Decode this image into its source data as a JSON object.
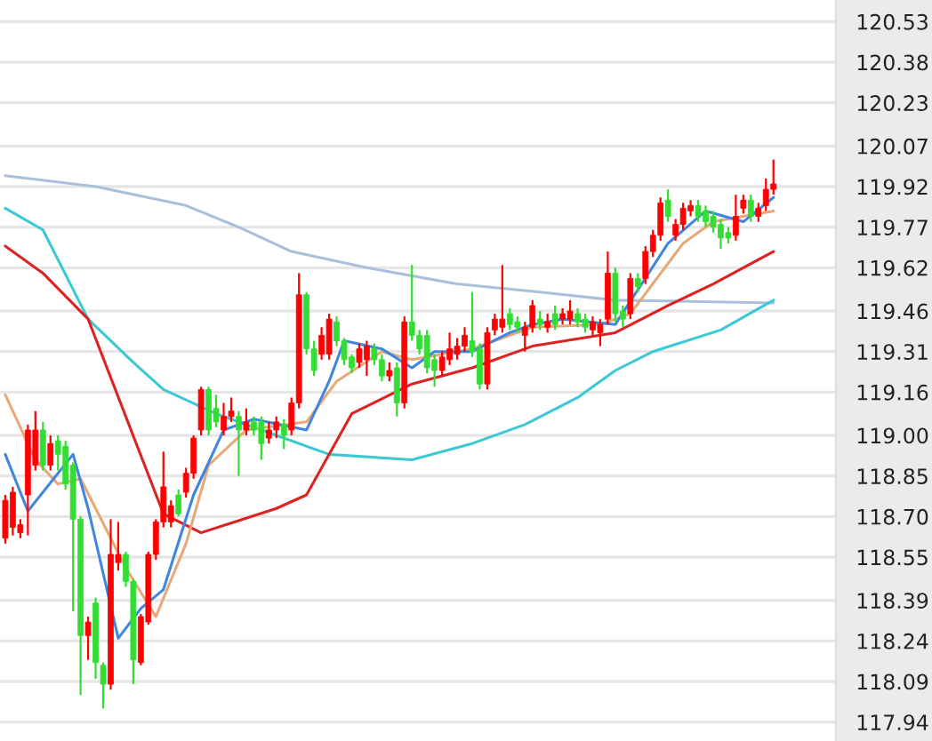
{
  "chart_data": {
    "type": "candlestick",
    "categories": [
      null,
      null,
      null,
      null,
      null,
      null,
      null,
      null,
      null,
      null,
      null,
      null,
      null,
      null,
      null,
      null,
      null,
      null,
      null,
      null,
      null,
      null,
      null,
      null,
      null,
      null,
      null,
      null,
      null,
      null,
      null,
      null,
      null,
      null,
      null,
      null,
      null,
      null,
      null,
      null,
      null,
      null,
      null,
      null,
      null,
      null,
      null,
      null,
      null,
      null,
      null,
      null,
      null,
      null,
      null,
      null,
      null,
      null,
      null,
      null,
      null,
      null,
      null,
      null,
      null,
      null,
      null,
      null,
      null,
      null,
      null,
      null,
      null,
      null,
      null,
      null,
      null,
      null,
      null,
      null,
      null,
      null,
      null,
      null,
      null,
      null,
      null,
      null,
      null,
      null,
      null,
      null,
      null,
      null,
      null,
      null,
      null,
      null,
      null,
      null,
      null,
      null,
      null
    ],
    "ohlc": [
      [
        118.62,
        118.78,
        118.6,
        118.76
      ],
      [
        118.66,
        118.81,
        118.63,
        118.79
      ],
      [
        118.64,
        118.69,
        118.62,
        118.67
      ],
      [
        118.78,
        119.04,
        118.63,
        119.02
      ],
      [
        118.89,
        119.09,
        118.87,
        119.02
      ],
      [
        119.02,
        119.05,
        118.87,
        118.89
      ],
      [
        118.89,
        119.0,
        118.87,
        118.97
      ],
      [
        118.98,
        119.0,
        118.87,
        118.93
      ],
      [
        118.96,
        118.98,
        118.8,
        118.82
      ],
      [
        118.89,
        118.9,
        118.35,
        118.69
      ],
      [
        118.69,
        118.7,
        118.04,
        118.26
      ],
      [
        118.26,
        118.33,
        118.17,
        118.31
      ],
      [
        118.38,
        118.4,
        118.1,
        118.16
      ],
      [
        118.15,
        118.16,
        117.99,
        118.08
      ],
      [
        118.08,
        118.69,
        118.06,
        118.56
      ],
      [
        118.53,
        118.68,
        118.5,
        118.56
      ],
      [
        118.56,
        118.57,
        118.44,
        118.46
      ],
      [
        118.46,
        118.47,
        118.08,
        118.17
      ],
      [
        118.16,
        118.34,
        118.15,
        118.33
      ],
      [
        118.31,
        118.57,
        118.3,
        118.56
      ],
      [
        118.56,
        118.69,
        118.54,
        118.68
      ],
      [
        118.68,
        118.94,
        118.66,
        118.81
      ],
      [
        118.68,
        118.76,
        118.66,
        118.74
      ],
      [
        118.78,
        118.8,
        118.7,
        118.71
      ],
      [
        118.79,
        118.88,
        118.77,
        118.86
      ],
      [
        118.86,
        119.0,
        118.84,
        118.99
      ],
      [
        119.02,
        119.18,
        119.0,
        119.17
      ],
      [
        119.17,
        119.18,
        119.0,
        119.02
      ],
      [
        119.1,
        119.15,
        119.03,
        119.05
      ],
      [
        119.02,
        119.12,
        119.0,
        119.07
      ],
      [
        119.07,
        119.14,
        119.05,
        119.09
      ],
      [
        119.07,
        119.09,
        118.85,
        119.02
      ],
      [
        119.02,
        119.1,
        119.0,
        119.05
      ],
      [
        119.05,
        119.07,
        119.0,
        119.02
      ],
      [
        119.05,
        119.07,
        118.91,
        118.97
      ],
      [
        118.99,
        119.05,
        118.97,
        119.02
      ],
      [
        119.02,
        119.07,
        118.99,
        119.05
      ],
      [
        119.04,
        119.06,
        118.95,
        119.0
      ],
      [
        119.02,
        119.14,
        119.0,
        119.12
      ],
      [
        119.12,
        119.6,
        119.1,
        119.52
      ],
      [
        119.52,
        119.53,
        119.3,
        119.32
      ],
      [
        119.32,
        119.35,
        119.22,
        119.24
      ],
      [
        119.3,
        119.4,
        119.28,
        119.37
      ],
      [
        119.3,
        119.45,
        119.28,
        119.43
      ],
      [
        119.42,
        119.44,
        119.33,
        119.35
      ],
      [
        119.35,
        119.36,
        119.26,
        119.28
      ],
      [
        119.29,
        119.3,
        119.23,
        119.25
      ],
      [
        119.27,
        119.34,
        119.25,
        119.32
      ],
      [
        119.28,
        119.35,
        119.22,
        119.33
      ],
      [
        119.32,
        119.34,
        119.26,
        119.28
      ],
      [
        119.28,
        119.3,
        119.2,
        119.22
      ],
      [
        119.22,
        119.27,
        119.2,
        119.24
      ],
      [
        119.25,
        119.27,
        119.07,
        119.12
      ],
      [
        119.12,
        119.44,
        119.1,
        119.42
      ],
      [
        119.42,
        119.63,
        119.35,
        119.37
      ],
      [
        119.37,
        119.39,
        119.3,
        119.32
      ],
      [
        119.37,
        119.39,
        119.23,
        119.25
      ],
      [
        119.28,
        119.3,
        119.18,
        119.24
      ],
      [
        119.24,
        119.31,
        119.22,
        119.29
      ],
      [
        119.28,
        119.38,
        119.26,
        119.32
      ],
      [
        119.3,
        119.36,
        119.28,
        119.33
      ],
      [
        119.33,
        119.4,
        119.31,
        119.37
      ],
      [
        119.35,
        119.53,
        119.29,
        119.31
      ],
      [
        119.32,
        119.34,
        119.17,
        119.19
      ],
      [
        119.19,
        119.4,
        119.17,
        119.38
      ],
      [
        119.39,
        119.45,
        119.37,
        119.43
      ],
      [
        119.4,
        119.63,
        119.38,
        119.43
      ],
      [
        119.45,
        119.47,
        119.39,
        119.41
      ],
      [
        119.42,
        119.44,
        119.38,
        119.4
      ],
      [
        119.37,
        119.42,
        119.31,
        119.4
      ],
      [
        119.4,
        119.5,
        119.38,
        119.48
      ],
      [
        119.43,
        119.46,
        119.39,
        119.41
      ],
      [
        119.4,
        119.45,
        119.38,
        119.42
      ],
      [
        119.45,
        119.48,
        119.39,
        119.41
      ],
      [
        119.43,
        119.47,
        119.41,
        119.45
      ],
      [
        119.43,
        119.5,
        119.41,
        119.46
      ],
      [
        119.45,
        119.47,
        119.4,
        119.42
      ],
      [
        119.43,
        119.45,
        119.38,
        119.4
      ],
      [
        119.39,
        119.44,
        119.37,
        119.42
      ],
      [
        119.38,
        119.43,
        119.33,
        119.41
      ],
      [
        119.43,
        119.68,
        119.41,
        119.6
      ],
      [
        119.6,
        119.62,
        119.42,
        119.45
      ],
      [
        119.46,
        119.48,
        119.4,
        119.43
      ],
      [
        119.45,
        119.6,
        119.43,
        119.58
      ],
      [
        119.58,
        119.6,
        119.53,
        119.55
      ],
      [
        119.58,
        119.7,
        119.56,
        119.68
      ],
      [
        119.68,
        119.76,
        119.66,
        119.74
      ],
      [
        119.74,
        119.88,
        119.72,
        119.86
      ],
      [
        119.87,
        119.91,
        119.79,
        119.81
      ],
      [
        119.74,
        119.8,
        119.72,
        119.78
      ],
      [
        119.78,
        119.86,
        119.76,
        119.84
      ],
      [
        119.83,
        119.87,
        119.81,
        119.85
      ],
      [
        119.85,
        119.87,
        119.79,
        119.81
      ],
      [
        119.83,
        119.85,
        119.77,
        119.79
      ],
      [
        119.81,
        119.83,
        119.75,
        119.77
      ],
      [
        119.78,
        119.8,
        119.69,
        119.73
      ],
      [
        119.75,
        119.77,
        119.71,
        119.73
      ],
      [
        119.74,
        119.89,
        119.72,
        119.81
      ],
      [
        119.84,
        119.89,
        119.82,
        119.87
      ],
      [
        119.87,
        119.89,
        119.79,
        119.81
      ],
      [
        119.81,
        119.86,
        119.79,
        119.84
      ],
      [
        119.85,
        119.95,
        119.83,
        119.91
      ],
      [
        119.91,
        120.02,
        119.89,
        119.93
      ]
    ],
    "colors": [
      "#ff0000",
      "#ff0000",
      "#ff0000",
      "#ff0000",
      "#ff0000",
      "#33dd33",
      "#ff0000",
      "#33dd33",
      "#33dd33",
      "#33dd33",
      "#33dd33",
      "#ff0000",
      "#33dd33",
      "#33dd33",
      "#ff0000",
      "#ff0000",
      "#33dd33",
      "#33dd33",
      "#ff0000",
      "#ff0000",
      "#ff0000",
      "#ff0000",
      "#ff0000",
      "#33dd33",
      "#ff0000",
      "#ff0000",
      "#ff0000",
      "#33dd33",
      "#33dd33",
      "#ff0000",
      "#ff0000",
      "#33dd33",
      "#ff0000",
      "#33dd33",
      "#33dd33",
      "#ff0000",
      "#ff0000",
      "#33dd33",
      "#ff0000",
      "#ff0000",
      "#33dd33",
      "#33dd33",
      "#ff0000",
      "#ff0000",
      "#33dd33",
      "#33dd33",
      "#33dd33",
      "#ff0000",
      "#ff0000",
      "#33dd33",
      "#33dd33",
      "#ff0000",
      "#33dd33",
      "#ff0000",
      "#33dd33",
      "#33dd33",
      "#33dd33",
      "#33dd33",
      "#ff0000",
      "#ff0000",
      "#ff0000",
      "#ff0000",
      "#33dd33",
      "#33dd33",
      "#ff0000",
      "#ff0000",
      "#ff0000",
      "#33dd33",
      "#33dd33",
      "#ff0000",
      "#ff0000",
      "#33dd33",
      "#ff0000",
      "#33dd33",
      "#ff0000",
      "#ff0000",
      "#33dd33",
      "#33dd33",
      "#ff0000",
      "#ff0000",
      "#ff0000",
      "#33dd33",
      "#33dd33",
      "#ff0000",
      "#33dd33",
      "#ff0000",
      "#ff0000",
      "#ff0000",
      "#33dd33",
      "#ff0000",
      "#ff0000",
      "#ff0000",
      "#33dd33",
      "#33dd33",
      "#33dd33",
      "#33dd33",
      "#33dd33",
      "#ff0000",
      "#ff0000",
      "#33dd33",
      "#ff0000",
      "#ff0000",
      "#ff0000"
    ],
    "series": [
      {
        "type": "line",
        "color": "#a9bfdc",
        "values": [
          119.96,
          null,
          null,
          null,
          null,
          null,
          null,
          null,
          null,
          null,
          null,
          null,
          119.92,
          null,
          null,
          null,
          null,
          null,
          null,
          null,
          null,
          null,
          null,
          null,
          119.85,
          null,
          null,
          null,
          null,
          null,
          null,
          119.77,
          null,
          null,
          null,
          null,
          null,
          null,
          119.68,
          null,
          null,
          null,
          null,
          null,
          null,
          null,
          null,
          null,
          119.62,
          null,
          null,
          null,
          null,
          null,
          null,
          null,
          null,
          null,
          null,
          null,
          119.56,
          null,
          null,
          null,
          null,
          null,
          null,
          null,
          null,
          null,
          null,
          119.53,
          null,
          null,
          null,
          null,
          null,
          null,
          null,
          null,
          null,
          119.5,
          null,
          null,
          null,
          null,
          null,
          null,
          null,
          null,
          null,
          null,
          null,
          null,
          null,
          null,
          null,
          null,
          null,
          null,
          null,
          null,
          119.49
        ]
      },
      {
        "type": "line",
        "color": "#3cc8d4",
        "values": [
          119.84,
          null,
          null,
          null,
          null,
          119.76,
          null,
          null,
          null,
          null,
          null,
          119.43,
          null,
          null,
          null,
          null,
          null,
          119.27,
          null,
          null,
          null,
          119.17,
          null,
          null,
          null,
          null,
          null,
          null,
          119.08,
          null,
          null,
          null,
          null,
          null,
          null,
          null,
          119.0,
          null,
          null,
          null,
          null,
          null,
          null,
          118.93,
          null,
          null,
          null,
          null,
          null,
          null,
          null,
          null,
          null,
          null,
          118.91,
          null,
          null,
          null,
          null,
          null,
          null,
          null,
          118.97,
          null,
          null,
          null,
          null,
          null,
          null,
          119.04,
          null,
          null,
          null,
          null,
          null,
          null,
          119.14,
          null,
          null,
          null,
          null,
          119.24,
          null,
          null,
          null,
          null,
          119.31,
          null,
          null,
          null,
          null,
          null,
          null,
          null,
          null,
          119.39,
          null,
          null,
          null,
          null,
          null,
          null,
          119.5
        ]
      },
      {
        "type": "line",
        "color": "#dd2222",
        "values": [
          119.7,
          null,
          null,
          null,
          null,
          119.6,
          null,
          null,
          null,
          null,
          null,
          119.43,
          null,
          null,
          null,
          null,
          null,
          null,
          null,
          null,
          null,
          118.71,
          null,
          null,
          null,
          null,
          118.64,
          null,
          null,
          null,
          null,
          null,
          null,
          null,
          null,
          null,
          118.73,
          null,
          null,
          null,
          118.78,
          null,
          null,
          null,
          null,
          null,
          119.08,
          null,
          null,
          null,
          null,
          null,
          null,
          null,
          119.19,
          null,
          null,
          null,
          null,
          null,
          null,
          null,
          119.25,
          null,
          null,
          null,
          null,
          null,
          null,
          null,
          119.33,
          null,
          null,
          null,
          null,
          null,
          null,
          null,
          null,
          null,
          null,
          119.38,
          null,
          null,
          null,
          null,
          null,
          null,
          119.48,
          null,
          null,
          null,
          null,
          null,
          119.56,
          null,
          null,
          null,
          null,
          null,
          null,
          null,
          119.68
        ]
      },
      {
        "type": "line",
        "color": "#e8a878",
        "values": [
          119.15,
          null,
          null,
          null,
          118.91,
          null,
          null,
          118.82,
          null,
          null,
          118.84,
          null,
          null,
          null,
          null,
          null,
          118.51,
          null,
          null,
          null,
          118.33,
          null,
          null,
          null,
          118.6,
          null,
          null,
          118.89,
          null,
          null,
          null,
          null,
          119.02,
          null,
          null,
          null,
          null,
          null,
          null,
          null,
          119.05,
          null,
          null,
          null,
          119.2,
          null,
          null,
          null,
          null,
          null,
          119.31,
          null,
          null,
          null,
          119.28,
          null,
          null,
          null,
          null,
          null,
          null,
          null,
          119.32,
          null,
          null,
          null,
          null,
          null,
          null,
          null,
          119.4,
          null,
          null,
          null,
          null,
          null,
          null,
          null,
          null,
          119.41,
          null,
          null,
          null,
          119.45,
          null,
          null,
          null,
          null,
          null,
          null,
          119.71,
          null,
          null,
          null,
          119.79,
          null,
          null,
          null,
          null,
          null,
          null,
          null,
          119.83
        ]
      },
      {
        "type": "line",
        "color": "#3f86e0",
        "values": [
          118.93,
          null,
          null,
          118.72,
          null,
          null,
          null,
          null,
          null,
          118.93,
          null,
          118.73,
          null,
          null,
          null,
          118.25,
          null,
          null,
          118.36,
          null,
          null,
          118.43,
          null,
          null,
          null,
          118.78,
          null,
          null,
          null,
          119.02,
          null,
          null,
          null,
          119.06,
          null,
          null,
          null,
          null,
          null,
          null,
          119.02,
          null,
          null,
          119.2,
          null,
          119.35,
          null,
          null,
          null,
          null,
          119.32,
          null,
          null,
          null,
          119.25,
          null,
          null,
          119.31,
          null,
          null,
          null,
          null,
          119.31,
          null,
          null,
          null,
          null,
          119.38,
          null,
          null,
          119.41,
          null,
          null,
          null,
          119.43,
          null,
          null,
          null,
          null,
          null,
          null,
          119.41,
          null,
          null,
          null,
          null,
          null,
          null,
          119.71,
          null,
          null,
          null,
          null,
          119.83,
          null,
          null,
          null,
          null,
          119.79,
          null,
          null,
          null,
          119.88
        ]
      }
    ],
    "ylim": [
      117.87,
      120.61
    ],
    "yticks": [
      {
        "value": 117.94,
        "label": "117.94"
      },
      {
        "value": 118.09,
        "label": "118.09"
      },
      {
        "value": 118.24,
        "label": "118.24"
      },
      {
        "value": 118.39,
        "label": "118.39"
      },
      {
        "value": 118.55,
        "label": "118.55"
      },
      {
        "value": 118.7,
        "label": "118.70"
      },
      {
        "value": 118.85,
        "label": "118.85"
      },
      {
        "value": 119.0,
        "label": "119.00"
      },
      {
        "value": 119.16,
        "label": "119.16"
      },
      {
        "value": 119.31,
        "label": "119.31"
      },
      {
        "value": 119.46,
        "label": "119.46"
      },
      {
        "value": 119.62,
        "label": "119.62"
      },
      {
        "value": 119.77,
        "label": "119.77"
      },
      {
        "value": 119.92,
        "label": "119.92"
      },
      {
        "value": 120.07,
        "label": "120.07"
      },
      {
        "value": 120.23,
        "label": "120.23"
      },
      {
        "value": 120.38,
        "label": "120.38"
      },
      {
        "value": 120.53,
        "label": "120.53"
      }
    ],
    "grid": "y",
    "tick_labels": "y"
  }
}
